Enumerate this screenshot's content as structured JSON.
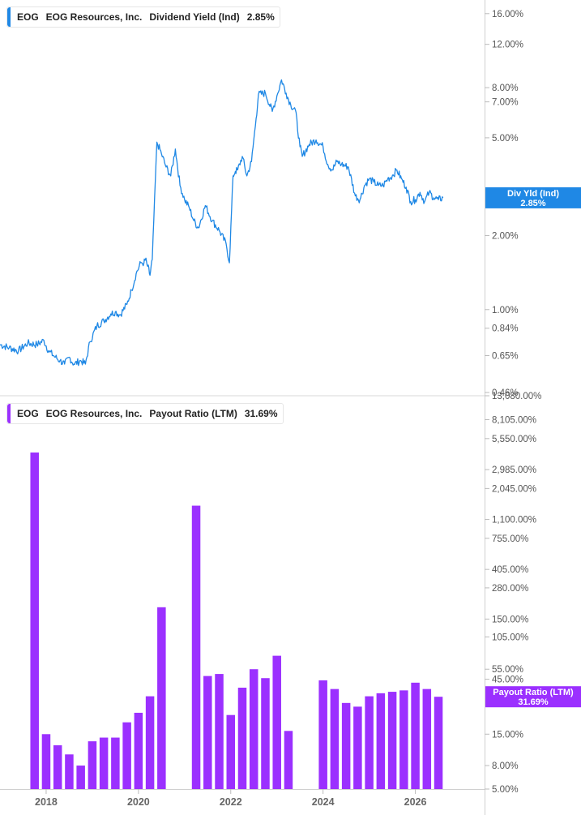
{
  "chart_data": [
    {
      "type": "line",
      "legend": {
        "ticker": "EOG",
        "company": "EOG Resources, Inc.",
        "metric": "Dividend Yield (Ind)",
        "value": "2.85%"
      },
      "color": "#1f88e5",
      "scale": "log",
      "ylim": [
        0.46,
        17.5
      ],
      "xlim": [
        2017.0,
        2027.5
      ],
      "y_ticks": [
        {
          "value": 16,
          "label": "16.00%"
        },
        {
          "value": 12,
          "label": "12.00%"
        },
        {
          "value": 8,
          "label": "8.00%"
        },
        {
          "value": 7,
          "label": "7.00%"
        },
        {
          "value": 5,
          "label": "5.00%"
        },
        {
          "value": 2,
          "label": "2.00%"
        },
        {
          "value": 1,
          "label": "1.00%"
        },
        {
          "value": 0.84,
          "label": "0.84%"
        },
        {
          "value": 0.65,
          "label": "0.65%"
        },
        {
          "value": 0.46,
          "label": "0.46%"
        }
      ],
      "callout": {
        "title": "Div Yld (Ind)",
        "value": "2.85%",
        "y": 2.85
      },
      "series": [
        {
          "x": [
            2017.0,
            2017.2,
            2017.4,
            2017.6,
            2017.8,
            2017.95,
            2018.05,
            2018.2,
            2018.3,
            2018.4,
            2018.5,
            2018.6,
            2018.75,
            2018.85,
            2018.95,
            2019.1,
            2019.25,
            2019.4,
            2019.5,
            2019.6,
            2019.75,
            2019.85,
            2019.95,
            2020.05,
            2020.12,
            2020.15,
            2020.2,
            2020.25,
            2020.3,
            2020.4,
            2020.5,
            2020.6,
            2020.7,
            2020.8,
            2020.9,
            2021.0,
            2021.1,
            2021.2,
            2021.3,
            2021.45,
            2021.6,
            2021.75,
            2021.9,
            2021.97,
            2022.05,
            2022.1,
            2022.15,
            2022.25,
            2022.35,
            2022.45,
            2022.55,
            2022.6,
            2022.75,
            2022.9,
            2023.0,
            2023.1,
            2023.2,
            2023.3,
            2023.4,
            2023.5,
            2023.55,
            2023.7,
            2023.85,
            2024.0,
            2024.1,
            2024.2,
            2024.3,
            2024.4,
            2024.55,
            2024.7,
            2024.8,
            2024.9,
            2025.0,
            2025.1,
            2025.2,
            2025.3,
            2025.4,
            2025.5,
            2025.6,
            2025.7,
            2025.8,
            2025.9,
            2026.0,
            2026.1,
            2026.2,
            2026.3,
            2026.4,
            2026.5,
            2026.6
          ],
          "values": [
            0.72,
            0.7,
            0.68,
            0.73,
            0.72,
            0.75,
            0.68,
            0.64,
            0.62,
            0.6,
            0.64,
            0.6,
            0.62,
            0.6,
            0.74,
            0.86,
            0.9,
            0.96,
            0.98,
            0.95,
            1.05,
            1.2,
            1.4,
            1.55,
            1.55,
            1.6,
            1.5,
            1.38,
            1.6,
            4.8,
            4.3,
            3.8,
            3.5,
            4.5,
            3.2,
            2.8,
            2.6,
            2.3,
            2.15,
            2.65,
            2.3,
            2.1,
            1.85,
            1.55,
            3.5,
            3.65,
            3.7,
            4.2,
            3.5,
            4.0,
            6.0,
            7.5,
            7.6,
            6.4,
            7.4,
            8.6,
            7.6,
            6.8,
            6.5,
            4.6,
            4.2,
            4.7,
            4.9,
            4.6,
            3.9,
            3.7,
            4.0,
            3.9,
            3.8,
            2.9,
            2.8,
            3.2,
            3.4,
            3.3,
            3.2,
            3.2,
            3.4,
            3.5,
            3.7,
            3.4,
            3.15,
            2.75,
            2.8,
            3.0,
            2.75,
            3.0,
            2.85,
            2.8,
            2.85
          ]
        }
      ]
    },
    {
      "type": "bar",
      "legend": {
        "ticker": "EOG",
        "company": "EOG Resources, Inc.",
        "metric": "Payout Ratio (LTM)",
        "value": "31.69%"
      },
      "color": "#9b30ff",
      "scale": "log",
      "ylim": [
        5.0,
        13080.0
      ],
      "xlim": [
        2017.0,
        2027.5
      ],
      "y_ticks": [
        {
          "value": 13080,
          "label": "13,080.00%"
        },
        {
          "value": 8105,
          "label": "8,105.00%"
        },
        {
          "value": 5550,
          "label": "5,550.00%"
        },
        {
          "value": 2985,
          "label": "2,985.00%"
        },
        {
          "value": 2045,
          "label": "2,045.00%"
        },
        {
          "value": 1100,
          "label": "1,100.00%"
        },
        {
          "value": 755,
          "label": "755.00%"
        },
        {
          "value": 405,
          "label": "405.00%"
        },
        {
          "value": 280,
          "label": "280.00%"
        },
        {
          "value": 150,
          "label": "150.00%"
        },
        {
          "value": 105,
          "label": "105.00%"
        },
        {
          "value": 55,
          "label": "55.00%"
        },
        {
          "value": 45,
          "label": "45.00%"
        },
        {
          "value": 15,
          "label": "15.00%"
        },
        {
          "value": 8,
          "label": "8.00%"
        },
        {
          "value": 5,
          "label": "5.00%"
        }
      ],
      "callout": {
        "title": "Payout Ratio (LTM)",
        "value": "31.69%",
        "y": 31.69
      },
      "x_ticks": [
        {
          "value": 2018,
          "label": "2018"
        },
        {
          "value": 2020,
          "label": "2020"
        },
        {
          "value": 2022,
          "label": "2022"
        },
        {
          "value": 2024,
          "label": "2024"
        },
        {
          "value": 2026,
          "label": "2026"
        }
      ],
      "series": [
        {
          "x": [
            2017.75,
            2018.0,
            2018.25,
            2018.5,
            2018.75,
            2019.0,
            2019.25,
            2019.5,
            2019.75,
            2020.0,
            2020.25,
            2020.5,
            2021.25,
            2021.5,
            2021.75,
            2022.0,
            2022.25,
            2022.5,
            2022.75,
            2023.0,
            2023.25,
            2024.0,
            2024.25,
            2024.5,
            2024.75,
            2025.0,
            2025.25,
            2025.5,
            2025.75,
            2026.0,
            2026.25,
            2026.5
          ],
          "values": [
            4200,
            15,
            12,
            10,
            8,
            13,
            14,
            14,
            19,
            23,
            32,
            190,
            1450,
            48,
            50,
            22,
            38,
            55,
            46,
            72,
            16,
            44,
            37,
            28,
            26,
            32,
            34,
            35,
            36,
            42,
            37,
            31.69
          ]
        }
      ]
    }
  ]
}
